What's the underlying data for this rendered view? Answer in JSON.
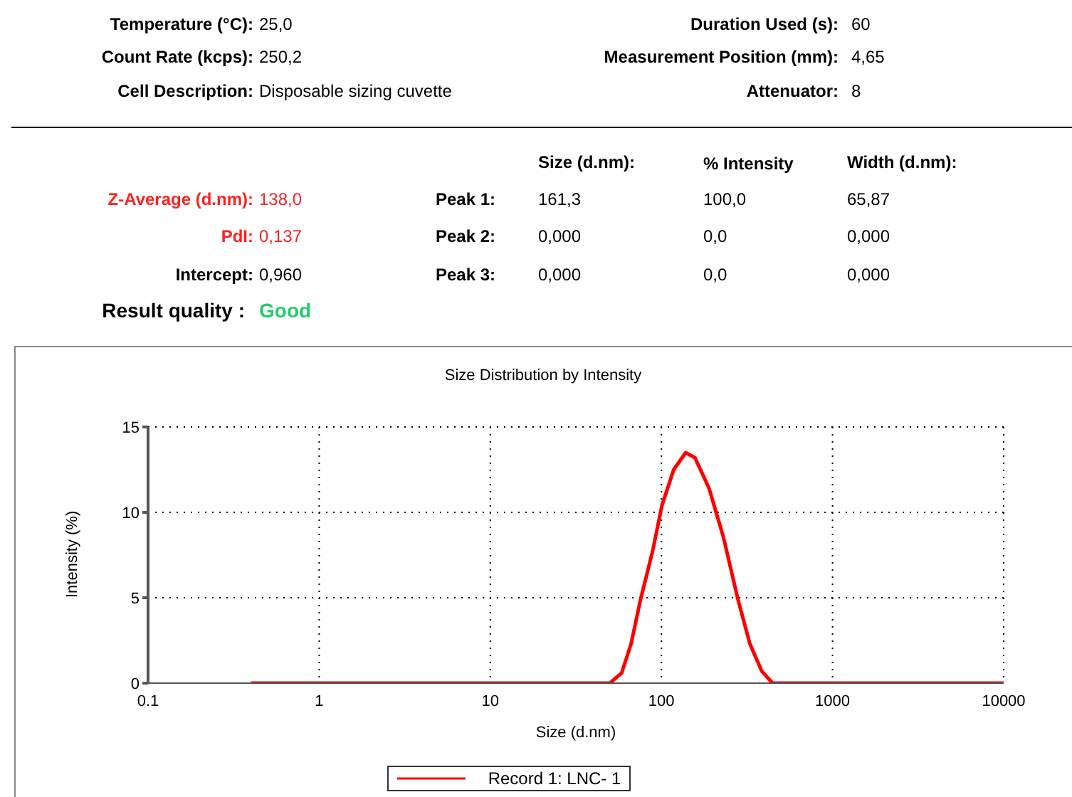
{
  "chart_data": {
    "type": "line",
    "title": "Size Distribution by Intensity",
    "xlabel": "Size (d.nm)",
    "ylabel": "Intensity (%)",
    "annotations": [
      "Temperature (°C):",
      "25,0",
      "Duration Used (s):",
      "60",
      "Count Rate (kcps):",
      "250,2",
      "Measurement Position (mm):",
      "4,65",
      "Cell Description:",
      "Disposable sizing cuvette",
      "Attenuator:",
      "8",
      "Size (d.nm):",
      "% Intensity",
      "Width (d.nm):",
      "Z-Average (d.nm):",
      "138,0",
      "Peak 1:",
      "161,3",
      "100,0",
      "65,87",
      "PdI:",
      "0,137",
      "Peak 2:",
      "0,000",
      "0,0",
      "0,000",
      "Intercept:",
      "0,960",
      "Peak 3:",
      "0,000",
      "0,0",
      "0,000",
      "Result quality :",
      "Good"
    ],
    "x": [
      0.4,
      50,
      58.6,
      66.5,
      75.5,
      88.7,
      100.7,
      118,
      138.6,
      157,
      190,
      231,
      280,
      329,
      386,
      446,
      10000
    ],
    "series": [
      {
        "name": "Record 1: LNC- 1",
        "color": "#ff0000",
        "values": [
          0,
          0,
          0.6,
          2.3,
          4.9,
          7.7,
          10.4,
          12.5,
          13.5,
          13.2,
          11.4,
          8.5,
          4.9,
          2.3,
          0.7,
          0,
          0
        ]
      }
    ],
    "log": "x",
    "xlim": [
      0.1,
      10000
    ],
    "xticks": [
      0.1,
      1,
      10,
      100,
      1000,
      10000
    ],
    "ylim": [
      0,
      15
    ],
    "yticks": [
      0,
      5,
      10,
      15
    ],
    "grid": true,
    "legend": "bottom",
    "marker": "none",
    "line_style": "solid"
  }
}
